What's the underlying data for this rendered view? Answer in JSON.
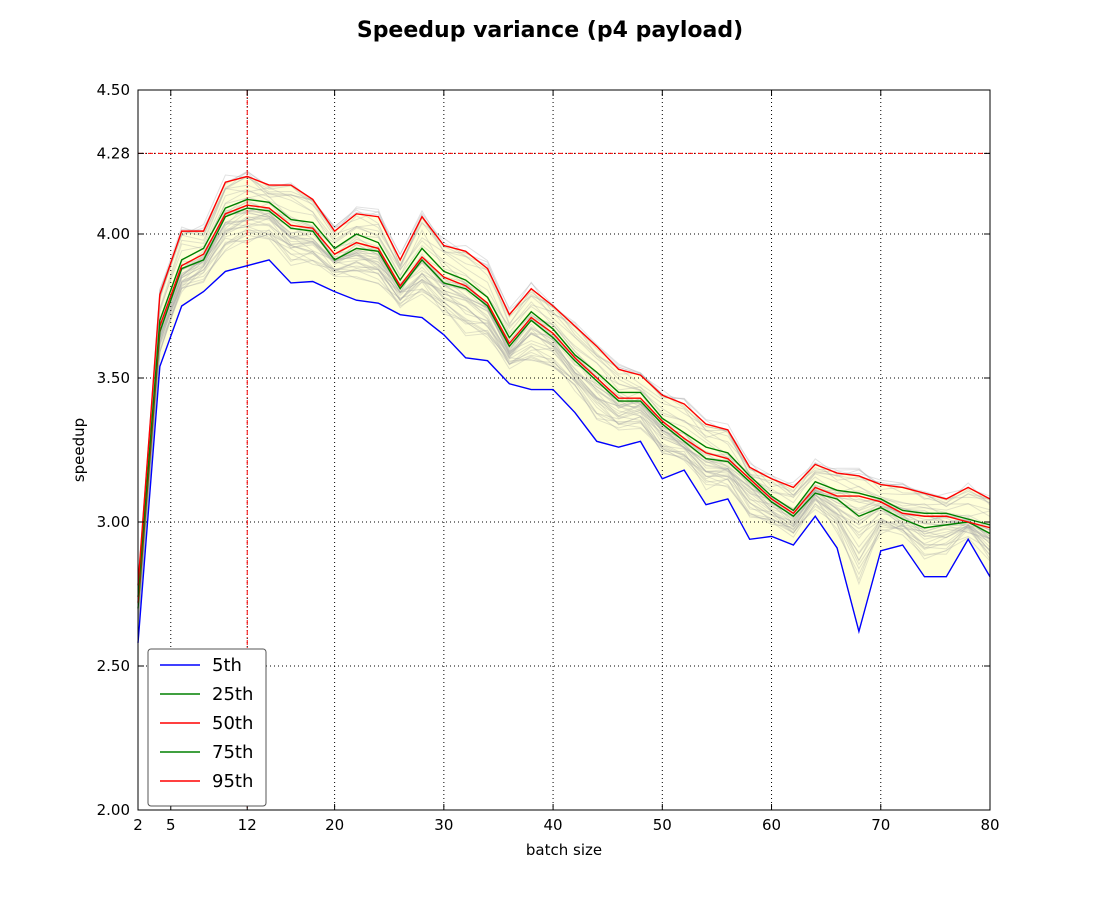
{
  "chart_data": {
    "type": "line",
    "title": "Speedup variance (p4 payload)",
    "xlabel": "batch size",
    "ylabel": "speedup",
    "xlim": [
      2,
      80
    ],
    "ylim": [
      2.0,
      4.5
    ],
    "xticks": [
      2,
      5,
      12,
      20,
      30,
      40,
      50,
      60,
      70,
      80
    ],
    "xtick_labels": [
      "2",
      "5",
      "12",
      "20",
      "30",
      "40",
      "50",
      "60",
      "70",
      "80"
    ],
    "yticks": [
      2.0,
      2.5,
      3.0,
      3.5,
      4.0,
      4.28,
      4.5
    ],
    "ytick_labels": [
      "2.00",
      "2.50",
      "3.00",
      "3.50",
      "4.00",
      "4.28",
      "4.50"
    ],
    "grid": true,
    "grid_style": "dotted",
    "highlight": {
      "x": 12,
      "y": 4.28,
      "color": "#ff0000"
    },
    "legend_position": "lower-left",
    "band_color": "#ffffcc",
    "background_runs_color": "#aaaaaa",
    "x": [
      2,
      4,
      6,
      8,
      10,
      12,
      14,
      16,
      18,
      20,
      22,
      24,
      26,
      28,
      30,
      32,
      34,
      36,
      38,
      40,
      42,
      44,
      46,
      48,
      50,
      52,
      54,
      56,
      58,
      60,
      62,
      64,
      66,
      68,
      70,
      72,
      74,
      76,
      78,
      80
    ],
    "series": [
      {
        "name": "5th",
        "color": "#0000ff",
        "values": [
          2.58,
          3.54,
          3.75,
          3.8,
          3.87,
          3.89,
          3.91,
          3.83,
          3.835,
          3.8,
          3.77,
          3.76,
          3.72,
          3.71,
          3.65,
          3.57,
          3.56,
          3.48,
          3.46,
          3.46,
          3.38,
          3.28,
          3.26,
          3.28,
          3.15,
          3.18,
          3.06,
          3.08,
          2.94,
          2.95,
          2.92,
          3.02,
          2.91,
          2.62,
          2.9,
          2.92,
          2.81,
          2.81,
          2.94,
          2.81
        ]
      },
      {
        "name": "25th",
        "color": "#008000",
        "values": [
          2.7,
          3.66,
          3.88,
          3.91,
          4.06,
          4.09,
          4.08,
          4.02,
          4.01,
          3.91,
          3.95,
          3.94,
          3.81,
          3.91,
          3.83,
          3.81,
          3.75,
          3.61,
          3.7,
          3.64,
          3.56,
          3.49,
          3.42,
          3.42,
          3.34,
          3.28,
          3.22,
          3.21,
          3.14,
          3.07,
          3.02,
          3.1,
          3.08,
          3.02,
          3.05,
          3.01,
          2.98,
          2.99,
          3.0,
          2.96
        ]
      },
      {
        "name": "50th",
        "color": "#ff0000",
        "values": [
          2.72,
          3.68,
          3.89,
          3.93,
          4.07,
          4.1,
          4.09,
          4.03,
          4.02,
          3.93,
          3.97,
          3.95,
          3.82,
          3.92,
          3.85,
          3.82,
          3.76,
          3.62,
          3.71,
          3.655,
          3.57,
          3.5,
          3.43,
          3.43,
          3.35,
          3.29,
          3.24,
          3.22,
          3.15,
          3.08,
          3.03,
          3.12,
          3.09,
          3.09,
          3.07,
          3.03,
          3.02,
          3.02,
          3.0,
          2.98
        ]
      },
      {
        "name": "75th",
        "color": "#008000",
        "values": [
          2.74,
          3.7,
          3.91,
          3.95,
          4.09,
          4.12,
          4.11,
          4.05,
          4.04,
          3.95,
          4.0,
          3.97,
          3.84,
          3.95,
          3.87,
          3.84,
          3.78,
          3.64,
          3.73,
          3.67,
          3.58,
          3.52,
          3.45,
          3.45,
          3.36,
          3.31,
          3.26,
          3.24,
          3.16,
          3.09,
          3.04,
          3.14,
          3.11,
          3.1,
          3.08,
          3.04,
          3.03,
          3.03,
          3.01,
          2.99
        ]
      },
      {
        "name": "95th",
        "color": "#ff0000",
        "values": [
          2.78,
          3.79,
          4.01,
          4.01,
          4.18,
          4.2,
          4.17,
          4.17,
          4.12,
          4.01,
          4.07,
          4.06,
          3.91,
          4.06,
          3.96,
          3.94,
          3.88,
          3.72,
          3.81,
          3.75,
          3.68,
          3.61,
          3.53,
          3.51,
          3.44,
          3.41,
          3.34,
          3.32,
          3.19,
          3.15,
          3.12,
          3.2,
          3.17,
          3.16,
          3.13,
          3.12,
          3.1,
          3.08,
          3.12,
          3.08
        ]
      }
    ]
  }
}
